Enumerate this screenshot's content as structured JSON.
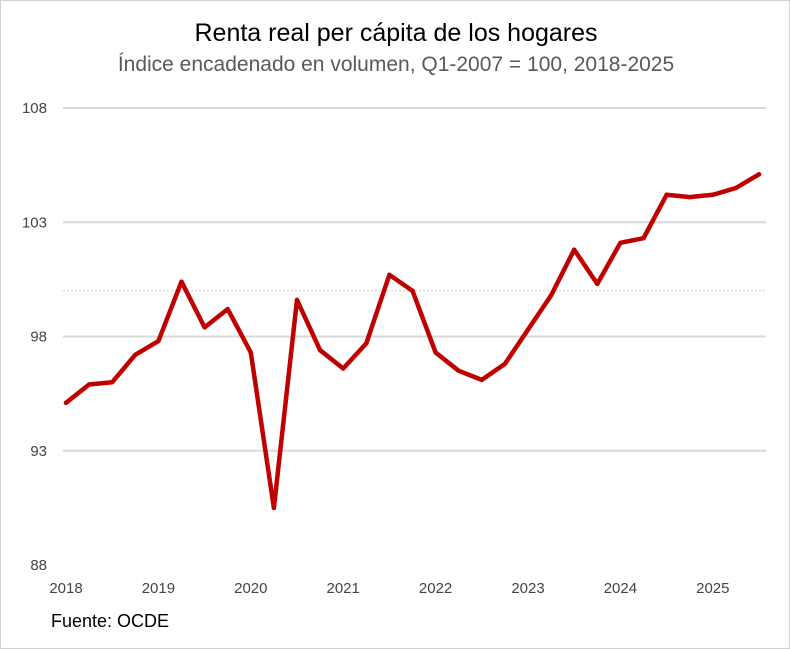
{
  "chart_data": {
    "type": "line",
    "title": "Renta real per cápita de los hogares",
    "subtitle": "Índice encadenado en volumen, Q1-2007 = 100, 2018-2025",
    "source": "Fuente: OCDE",
    "xlabel": "",
    "ylabel": "",
    "ylim": [
      88,
      108
    ],
    "yticks": [
      "88",
      "93",
      "98",
      "103",
      "108"
    ],
    "xticks": [
      "2018",
      "2019",
      "2020",
      "2021",
      "2022",
      "2023",
      "2024",
      "2025"
    ],
    "reference_line": 100,
    "grid": true,
    "line_color": "#C00000",
    "x": [
      "2018-Q1",
      "2018-Q2",
      "2018-Q3",
      "2018-Q4",
      "2019-Q1",
      "2019-Q2",
      "2019-Q3",
      "2019-Q4",
      "2020-Q1",
      "2020-Q2",
      "2020-Q3",
      "2020-Q4",
      "2021-Q1",
      "2021-Q2",
      "2021-Q3",
      "2021-Q4",
      "2022-Q1",
      "2022-Q2",
      "2022-Q3",
      "2022-Q4",
      "2023-Q1",
      "2023-Q2",
      "2023-Q3",
      "2023-Q4",
      "2024-Q1",
      "2024-Q2",
      "2024-Q3",
      "2024-Q4",
      "2025-Q1",
      "2025-Q2",
      "2025-Q3"
    ],
    "values": [
      95.1,
      95.9,
      96.0,
      97.2,
      97.8,
      100.4,
      98.4,
      99.2,
      97.3,
      90.5,
      99.6,
      97.4,
      96.6,
      97.7,
      100.7,
      100.0,
      97.3,
      96.5,
      96.1,
      96.8,
      98.3,
      99.8,
      101.8,
      100.3,
      102.1,
      102.3,
      104.2,
      104.1,
      104.2,
      104.5,
      105.1
    ]
  }
}
